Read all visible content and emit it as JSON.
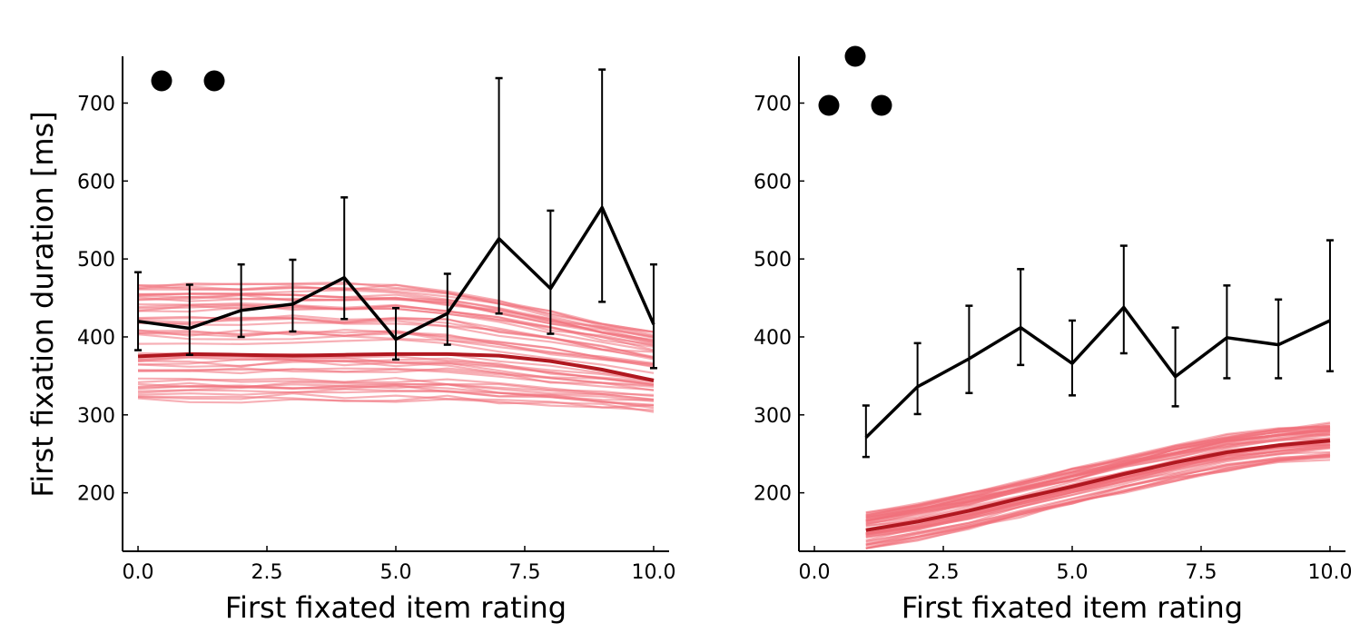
{
  "ylabel": "First fixation duration [ms]",
  "chart_data": [
    {
      "type": "line",
      "panel": "left",
      "xlabel": "First fixated item rating",
      "ylabel": "First fixation duration [ms]",
      "xlim": [
        -0.3,
        10.3
      ],
      "ylim": [
        125,
        760
      ],
      "xticks": [
        "0.0",
        "2.5",
        "5.0",
        "7.5",
        "10.0"
      ],
      "yticks": [
        "200",
        "300",
        "400",
        "500",
        "600",
        "700"
      ],
      "marker_dots": 2,
      "observed": {
        "x": [
          0,
          1,
          2,
          3,
          4,
          5,
          6,
          7,
          8,
          9,
          10
        ],
        "y": [
          420,
          411,
          434,
          442,
          476,
          397,
          430,
          526,
          462,
          566,
          416
        ],
        "err_low": [
          383,
          377,
          400,
          407,
          423,
          371,
          390,
          430,
          404,
          445,
          360
        ],
        "err_high": [
          483,
          467,
          493,
          499,
          579,
          437,
          481,
          732,
          562,
          743,
          493
        ]
      },
      "simulation_mean": {
        "x": [
          0,
          1,
          2,
          3,
          4,
          5,
          6,
          7,
          8,
          9,
          10
        ],
        "y": [
          375,
          378,
          377,
          376,
          377,
          378,
          378,
          376,
          369,
          358,
          344
        ]
      },
      "simulation_band": {
        "low": 318,
        "high": 475,
        "low_end": 305,
        "high_end": 412,
        "n_runs": 50
      },
      "colors": {
        "observed": "#000000",
        "mean": "#b01820",
        "runs": "#f0707a"
      }
    },
    {
      "type": "line",
      "panel": "right",
      "xlabel": "First fixated item rating",
      "ylabel": "",
      "xlim": [
        -0.3,
        10.3
      ],
      "ylim": [
        125,
        760
      ],
      "xticks": [
        "0.0",
        "2.5",
        "5.0",
        "7.5",
        "10.0"
      ],
      "yticks": [
        "200",
        "300",
        "400",
        "500",
        "600",
        "700"
      ],
      "marker_dots": 3,
      "observed": {
        "x": [
          1,
          2,
          3,
          4,
          5,
          6,
          7,
          8,
          9,
          10
        ],
        "y": [
          271,
          336,
          372,
          412,
          366,
          438,
          349,
          399,
          390,
          421
        ],
        "err_low": [
          246,
          301,
          328,
          364,
          325,
          379,
          311,
          347,
          347,
          356
        ],
        "err_high": [
          312,
          392,
          440,
          487,
          421,
          517,
          412,
          466,
          448,
          524
        ]
      },
      "simulation_mean": {
        "x": [
          1,
          2,
          3,
          4,
          5,
          6,
          7,
          8,
          9,
          10
        ],
        "y": [
          152,
          163,
          177,
          193,
          208,
          224,
          239,
          252,
          261,
          267
        ]
      },
      "simulation_band": {
        "spread": 22,
        "n_runs": 50
      },
      "colors": {
        "observed": "#000000",
        "mean": "#b01820",
        "runs": "#f0707a"
      }
    }
  ]
}
